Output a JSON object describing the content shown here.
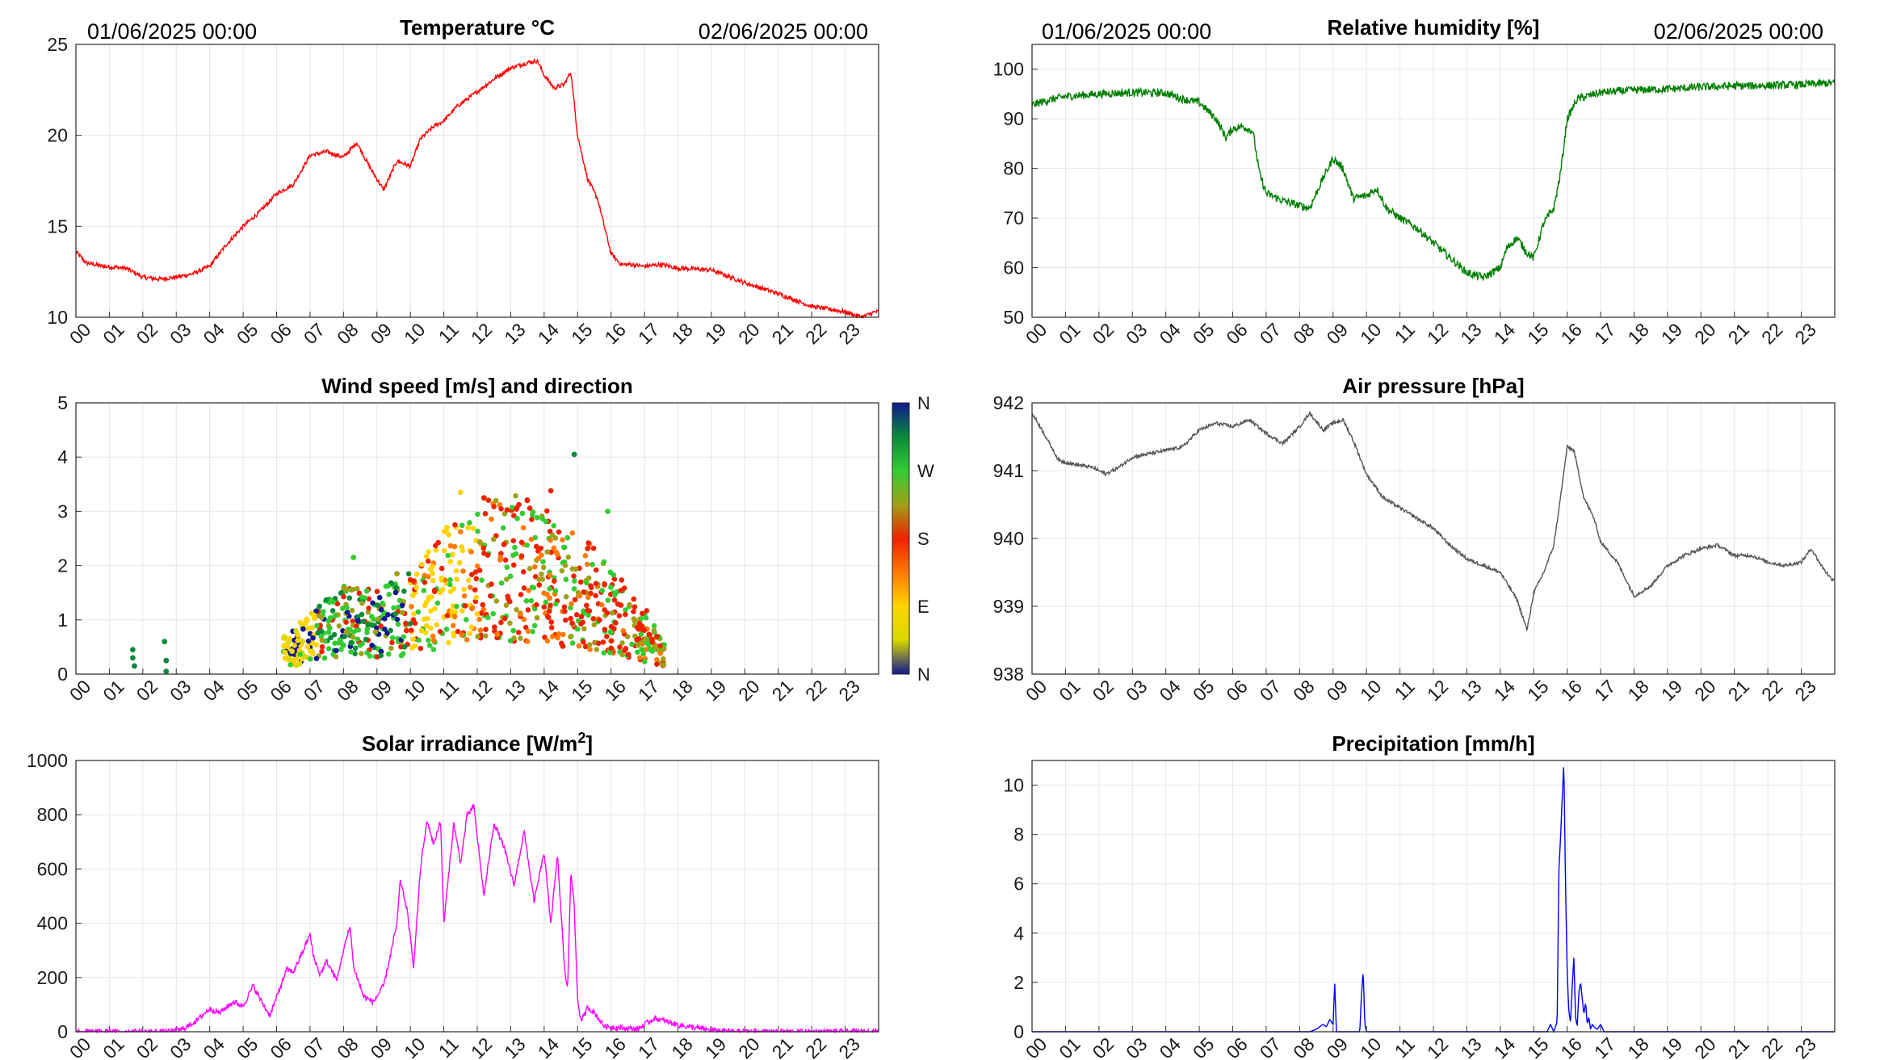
{
  "header": {
    "start": "01/06/2025 00:00",
    "end": "02/06/2025 00:00"
  },
  "hour_ticks": [
    "00",
    "01",
    "02",
    "03",
    "04",
    "05",
    "06",
    "07",
    "08",
    "09",
    "10",
    "11",
    "12",
    "13",
    "14",
    "15",
    "16",
    "17",
    "18",
    "19",
    "20",
    "21",
    "22",
    "23"
  ],
  "colorbar": {
    "labels": [
      "N",
      "W",
      "S",
      "E",
      "N"
    ],
    "colors": [
      "#101890",
      "#0b8a3a",
      "#33cc33",
      "#a0a018",
      "#ee2200",
      "#ff7a00",
      "#ffd400",
      "#d8d800",
      "#101890"
    ]
  },
  "chart_data": [
    {
      "id": "temp",
      "type": "line",
      "title": "Temperature °C",
      "title_unit": "",
      "title_suffix": "",
      "color": "#ff0000",
      "ylim": [
        10,
        25
      ],
      "yticks": [
        10,
        15,
        20,
        25
      ],
      "xlim": [
        0,
        24
      ],
      "grid": true,
      "noise": 0.12,
      "x": [
        0,
        0.3,
        0.8,
        1.5,
        2.0,
        2.5,
        3.0,
        3.5,
        4.0,
        4.5,
        5.0,
        5.5,
        6.0,
        6.5,
        7.0,
        7.5,
        8.0,
        8.4,
        8.8,
        9.2,
        9.6,
        10.0,
        10.3,
        10.7,
        11.0,
        11.4,
        12.0,
        12.5,
        13.0,
        13.5,
        13.8,
        14.0,
        14.3,
        14.6,
        14.8,
        15.0,
        15.3,
        15.6,
        16.0,
        16.3,
        16.6,
        17.0,
        17.5,
        18.0,
        19.0,
        20.0,
        21.0,
        22.0,
        23.0,
        23.5,
        23.9
      ],
      "y": [
        13.6,
        13.0,
        12.8,
        12.7,
        12.2,
        12.1,
        12.2,
        12.4,
        12.8,
        14.0,
        15.0,
        15.8,
        16.8,
        17.3,
        18.9,
        19.1,
        18.8,
        19.6,
        18.2,
        17.0,
        18.6,
        18.3,
        19.8,
        20.5,
        20.8,
        21.6,
        22.4,
        23.1,
        23.7,
        24.0,
        24.1,
        23.3,
        22.6,
        22.8,
        23.5,
        20.0,
        17.6,
        16.5,
        13.5,
        12.9,
        12.9,
        12.8,
        12.9,
        12.7,
        12.6,
        11.9,
        11.3,
        10.6,
        10.3,
        10.0,
        10.3
      ]
    },
    {
      "id": "rh",
      "type": "line",
      "title": "Relative humidity [%]",
      "title_unit": "",
      "title_suffix": "",
      "color": "#007f00",
      "ylim": [
        50,
        105
      ],
      "yticks": [
        50,
        60,
        70,
        80,
        90,
        100
      ],
      "xlim": [
        0,
        24
      ],
      "grid": true,
      "noise": 0.8,
      "x": [
        0,
        0.5,
        1.0,
        2.0,
        3.0,
        4.0,
        4.5,
        5.0,
        5.5,
        5.8,
        6.0,
        6.3,
        6.6,
        6.8,
        7.0,
        7.5,
        8.0,
        8.3,
        8.7,
        9.0,
        9.3,
        9.6,
        10.0,
        10.3,
        10.6,
        11.0,
        11.5,
        12.0,
        12.5,
        13.0,
        13.5,
        14.0,
        14.2,
        14.5,
        14.8,
        15.0,
        15.3,
        15.6,
        15.8,
        16.0,
        16.3,
        17.0,
        18.0,
        19.0,
        20.0,
        21.0,
        22.0,
        23.0,
        23.9
      ],
      "y": [
        92.8,
        93.8,
        94.5,
        95.0,
        95.3,
        95.2,
        94.0,
        93.3,
        90.0,
        86.2,
        88.0,
        88.5,
        87.5,
        79.0,
        75.0,
        73.5,
        72.5,
        72.0,
        78.0,
        82.0,
        80.0,
        74.0,
        74.5,
        76.0,
        72.0,
        70.0,
        68.0,
        65.0,
        62.0,
        59.0,
        58.0,
        60.0,
        64.0,
        66.0,
        63.0,
        62.0,
        69.0,
        72.0,
        79.0,
        90.0,
        94.0,
        95.3,
        95.8,
        96.0,
        96.4,
        96.6,
        96.7,
        96.9,
        97.2
      ]
    },
    {
      "id": "wind",
      "type": "scatter",
      "title": "Wind speed [m/s] and direction",
      "title_unit": "",
      "title_suffix": "",
      "ylim": [
        0,
        5
      ],
      "yticks": [
        0,
        1,
        2,
        3,
        4,
        5
      ],
      "xlim": [
        0,
        24
      ],
      "grid": true,
      "color_encoding": "wind direction (N-E-S-W-N)",
      "speed_envelope_x": [
        6.2,
        7,
        8,
        9,
        10,
        11,
        12,
        13,
        14,
        15,
        16,
        17,
        17.6
      ],
      "speed_envelope_y": [
        0.5,
        0.8,
        1.2,
        1.1,
        1.4,
        1.9,
        2.3,
        2.4,
        2.2,
        1.9,
        1.4,
        0.9,
        0.4
      ],
      "points": [
        [
          1.7,
          0.45,
          "#0b8a3a"
        ],
        [
          1.7,
          0.3,
          "#0b8a3a"
        ],
        [
          1.75,
          0.15,
          "#0b8a3a"
        ],
        [
          2.65,
          0.6,
          "#0b8a3a"
        ],
        [
          2.7,
          0.25,
          "#0b8a3a"
        ],
        [
          2.7,
          0.05,
          "#0b8a3a"
        ],
        [
          14.9,
          4.05,
          "#0b8a3a"
        ],
        [
          14.2,
          3.38,
          "#ee2200"
        ],
        [
          11.5,
          3.35,
          "#ffd400"
        ],
        [
          12.2,
          3.25,
          "#ee2200"
        ],
        [
          15.9,
          3.0,
          "#33cc33"
        ],
        [
          8.3,
          2.15,
          "#33cc33"
        ],
        [
          9.6,
          1.85,
          "#a0a018"
        ]
      ]
    },
    {
      "id": "pressure",
      "type": "line",
      "title": "Air pressure [hPa]",
      "title_unit": "",
      "title_suffix": "",
      "color": "#555555",
      "ylim": [
        938,
        942
      ],
      "yticks": [
        938,
        939,
        940,
        941,
        942
      ],
      "xlim": [
        0,
        24
      ],
      "grid": true,
      "noise": 0.025,
      "x": [
        0,
        0.3,
        0.8,
        1.2,
        1.8,
        2.2,
        2.6,
        3.0,
        3.5,
        4.0,
        4.5,
        5.0,
        5.5,
        6.0,
        6.5,
        7.0,
        7.5,
        8.0,
        8.3,
        8.7,
        9.0,
        9.3,
        9.6,
        10.0,
        10.5,
        11.0,
        11.5,
        12.0,
        12.5,
        13.0,
        13.5,
        14.0,
        14.5,
        14.8,
        15.0,
        15.3,
        15.6,
        15.8,
        16.0,
        16.2,
        16.5,
        16.8,
        17.0,
        17.5,
        18.0,
        18.5,
        19.0,
        19.5,
        20.0,
        20.5,
        21.0,
        21.5,
        22.0,
        22.5,
        23.0,
        23.3,
        23.6,
        23.9
      ],
      "y": [
        941.85,
        941.6,
        941.15,
        941.1,
        941.05,
        940.95,
        941.05,
        941.2,
        941.25,
        941.3,
        941.35,
        941.6,
        941.7,
        941.65,
        941.75,
        941.55,
        941.4,
        941.65,
        941.85,
        941.6,
        941.7,
        941.75,
        941.45,
        940.95,
        940.6,
        940.45,
        940.3,
        940.15,
        939.9,
        939.7,
        939.6,
        939.5,
        939.1,
        938.65,
        939.2,
        939.5,
        939.9,
        940.6,
        941.35,
        941.3,
        940.6,
        940.3,
        939.95,
        939.65,
        939.15,
        939.3,
        939.6,
        939.75,
        939.85,
        939.9,
        939.75,
        939.75,
        939.65,
        939.6,
        939.65,
        939.85,
        939.6,
        939.4
      ]
    },
    {
      "id": "solar",
      "type": "line",
      "title": "Solar irradiance [W/m",
      "title_unit": "2",
      "title_suffix": "]",
      "color": "#ff00ff",
      "ylim": [
        0,
        1000
      ],
      "yticks": [
        0,
        200,
        400,
        600,
        800,
        1000
      ],
      "xlim": [
        0,
        24
      ],
      "grid": true,
      "noise": 10,
      "x": [
        0,
        2.8,
        3.2,
        3.6,
        4.0,
        4.3,
        4.7,
        5.0,
        5.3,
        5.6,
        5.8,
        6.1,
        6.3,
        6.5,
        6.8,
        7.0,
        7.1,
        7.3,
        7.5,
        7.8,
        8.0,
        8.2,
        8.3,
        8.6,
        8.9,
        9.2,
        9.4,
        9.6,
        9.7,
        9.9,
        10.1,
        10.3,
        10.5,
        10.7,
        10.9,
        11.0,
        11.3,
        11.5,
        11.7,
        11.9,
        12.2,
        12.5,
        12.8,
        13.1,
        13.4,
        13.7,
        14.0,
        14.2,
        14.4,
        14.6,
        14.7,
        14.8,
        14.9,
        15.0,
        15.1,
        15.2,
        15.3,
        15.5,
        15.8,
        16.2,
        16.8,
        17.3,
        17.6,
        18.0,
        19.0,
        20.0,
        24.0
      ],
      "y": [
        0,
        0,
        10,
        40,
        85,
        70,
        110,
        95,
        170,
        100,
        60,
        160,
        230,
        220,
        300,
        360,
        280,
        210,
        260,
        190,
        300,
        390,
        240,
        130,
        110,
        170,
        280,
        400,
        560,
        450,
        240,
        600,
        780,
        690,
        780,
        400,
        770,
        620,
        800,
        830,
        500,
        770,
        680,
        540,
        740,
        480,
        660,
        400,
        650,
        250,
        150,
        600,
        460,
        120,
        40,
        60,
        90,
        70,
        20,
        15,
        10,
        50,
        40,
        25,
        5,
        0,
        0
      ]
    },
    {
      "id": "precip",
      "type": "line",
      "title": "Precipitation [mm/h]",
      "title_unit": "",
      "title_suffix": "",
      "color": "#0000ff",
      "ylim": [
        0,
        11
      ],
      "yticks": [
        0,
        2,
        4,
        6,
        8,
        10
      ],
      "xlim": [
        0,
        24
      ],
      "grid": true,
      "noise": 0,
      "x": [
        0,
        8.3,
        8.5,
        8.7,
        8.8,
        8.9,
        9.0,
        9.05,
        9.1,
        9.8,
        9.85,
        9.9,
        9.95,
        10.0,
        15.4,
        15.5,
        15.6,
        15.7,
        15.75,
        15.8,
        15.9,
        15.95,
        16.0,
        16.05,
        16.1,
        16.15,
        16.2,
        16.25,
        16.3,
        16.35,
        16.4,
        16.5,
        16.55,
        16.6,
        16.65,
        16.7,
        16.75,
        16.8,
        16.9,
        17.0,
        17.1,
        17.3,
        24.0
      ],
      "y": [
        0,
        0,
        0.1,
        0.3,
        0.2,
        0.5,
        0.3,
        2.0,
        0,
        0,
        1.5,
        2.5,
        0.3,
        0,
        0,
        0.3,
        0,
        0.4,
        6.5,
        7.8,
        11.0,
        6.0,
        2.5,
        0.8,
        0.4,
        1.8,
        3.0,
        0.6,
        0.2,
        1.6,
        2.0,
        0.7,
        1.2,
        0.3,
        0.6,
        0.1,
        0.3,
        0.2,
        0.1,
        0.3,
        0,
        0,
        0
      ]
    }
  ]
}
